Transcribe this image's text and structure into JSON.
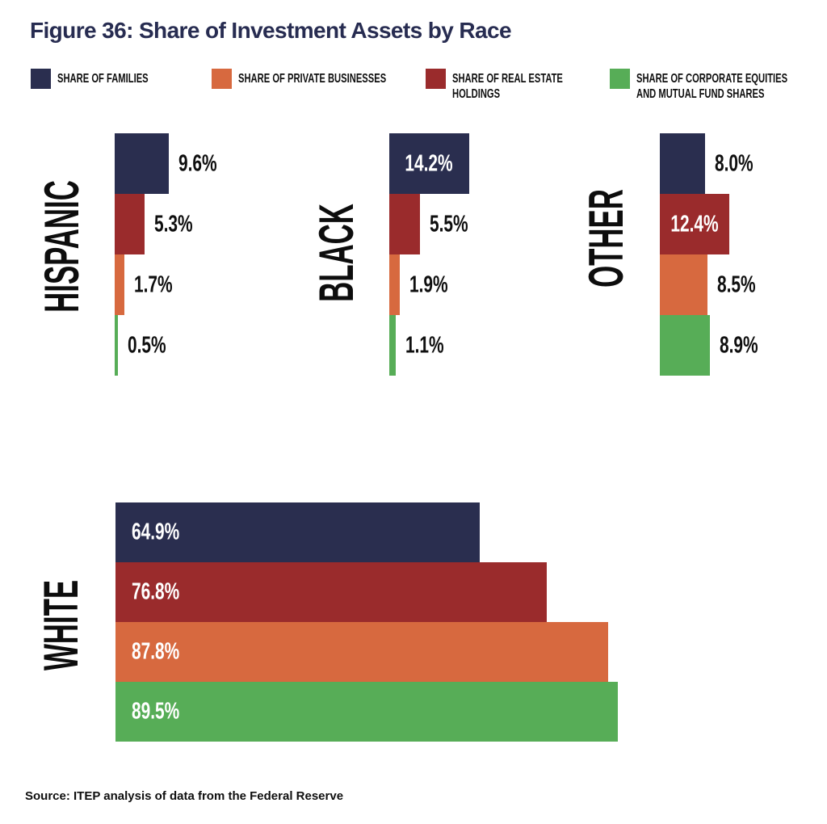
{
  "title": "Figure 36: Share of Investment Assets by Race",
  "source_note": "Source: ITEP analysis of data from the Federal Reserve",
  "colors": {
    "navy": "#2a2e4f",
    "red": "#9a2b2c",
    "orange": "#d7693f",
    "green": "#57ad57",
    "title_text": "#272c51",
    "text": "#0f0f0f",
    "inside_label_text": "#ffffff",
    "background": "#ffffff"
  },
  "legend": {
    "items": [
      {
        "label": "SHARE OF FAMILIES",
        "color": "navy"
      },
      {
        "label": "SHARE OF PRIVATE BUSINESSES",
        "color": "orange"
      },
      {
        "label": "SHARE OF REAL ESTATE HOLDINGS",
        "color": "red"
      },
      {
        "label": "SHARE OF CORPORATE EQUITIES AND MUTUAL FUND SHARES",
        "color": "green"
      }
    ]
  },
  "chart_data": {
    "type": "bar",
    "orientation": "horizontal",
    "unit": "percent",
    "axes": "none",
    "legend_position": "top",
    "series": [
      {
        "name": "Share of Families",
        "color": "navy"
      },
      {
        "name": "Share of Real Estate Holdings",
        "color": "red"
      },
      {
        "name": "Share of Private Businesses",
        "color": "orange"
      },
      {
        "name": "Share of Corporate Equities and Mutual Fund Shares",
        "color": "green"
      }
    ],
    "bar_order_note": "Within each race group bars are stacked top-to-bottom: Families (navy), Real Estate Holdings (red), Private Businesses (orange), Corporate Equities and Mutual Fund Shares (green)",
    "groups": [
      {
        "category": "HISPANIC",
        "values": [
          9.6,
          5.3,
          1.7,
          0.5
        ],
        "labels": [
          "9.6%",
          "5.3%",
          "1.7%",
          "0.5%"
        ],
        "label_style": [
          "out",
          "out",
          "out",
          "out"
        ]
      },
      {
        "category": "BLACK",
        "values": [
          14.2,
          5.5,
          1.9,
          1.1
        ],
        "labels": [
          "14.2%",
          "5.5%",
          "1.9%",
          "1.1%"
        ],
        "label_style": [
          "in-center",
          "out",
          "out",
          "out"
        ]
      },
      {
        "category": "OTHER",
        "values": [
          8.0,
          12.4,
          8.5,
          8.9
        ],
        "labels": [
          "8.0%",
          "12.4%",
          "8.5%",
          "8.9%"
        ],
        "label_style": [
          "out",
          "in-center",
          "out",
          "out"
        ]
      },
      {
        "category": "WHITE",
        "values": [
          64.9,
          76.8,
          87.8,
          89.5
        ],
        "labels": [
          "64.9%",
          "76.8%",
          "87.8%",
          "89.5%"
        ],
        "label_style": [
          "in-left",
          "in-left",
          "in-left",
          "in-left"
        ]
      }
    ]
  }
}
